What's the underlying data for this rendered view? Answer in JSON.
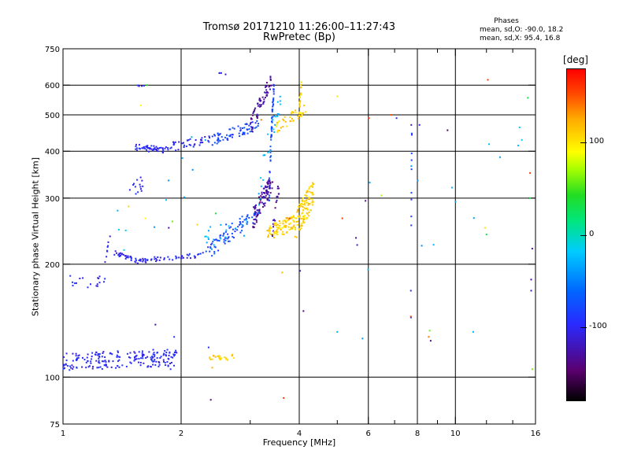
{
  "chart_data": {
    "type": "scatter",
    "title": "Tromsø 20171210 11:26:00–11:27:43",
    "subtitle": "RwPretec (Bp)",
    "xlabel": "Frequency [MHz]",
    "ylabel": "Stationary phase Virtual Height [km]",
    "x_scale": "log",
    "y_scale": "log",
    "xlim": [
      1,
      16
    ],
    "ylim": [
      75,
      750
    ],
    "x_ticks": [
      1,
      2,
      4,
      6,
      8,
      10,
      16
    ],
    "x_ticklabels": [
      "1",
      "2",
      "4",
      "6",
      "8",
      "10",
      "16"
    ],
    "x_minor_ticks": [
      3,
      5,
      7,
      9,
      12,
      14
    ],
    "y_ticks": [
      75,
      100,
      200,
      300,
      400,
      500,
      600,
      750
    ],
    "y_ticklabels": [
      "75",
      "100",
      "200",
      "300",
      "400",
      "500",
      "600",
      "750"
    ],
    "grid_x": [
      2,
      4,
      6,
      8,
      10
    ],
    "grid_y": [
      100,
      200,
      300,
      400,
      500,
      600
    ],
    "phases": {
      "title": "Phases",
      "line1": "mean, sd,O: -90.0, 18.2",
      "line2": "mean, sd,X:  95.4, 16.8"
    },
    "colorbar": {
      "label": "[deg]",
      "range": [
        -180,
        180
      ],
      "ticks": [
        100,
        0,
        -100
      ],
      "ticklabels": [
        "100",
        "0",
        "-100"
      ]
    },
    "series": [
      {
        "phase": -100,
        "segments": [
          {
            "f0": 1.0,
            "f1": 1.28,
            "h0": 180,
            "h1": 180,
            "sc": 8,
            "n": 18
          },
          {
            "f0": 1.28,
            "f1": 1.32,
            "h0": 205,
            "h1": 240,
            "sc": 6,
            "n": 8
          },
          {
            "f0": 1.0,
            "f1": 1.95,
            "h0": 110,
            "h1": 113,
            "sc": 6,
            "n": 200
          },
          {
            "f0": 1.35,
            "f1": 1.55,
            "h0": 215,
            "h1": 204,
            "sc": 3,
            "n": 30
          },
          {
            "f0": 1.55,
            "f1": 2.3,
            "h0": 204,
            "h1": 212,
            "sc": 3,
            "n": 50
          },
          {
            "f0": 1.52,
            "f1": 1.75,
            "h0": 410,
            "h1": 405,
            "sc": 8,
            "n": 40
          },
          {
            "f0": 1.75,
            "f1": 2.4,
            "h0": 405,
            "h1": 430,
            "sc": 12,
            "n": 50
          },
          {
            "f0": 1.48,
            "f1": 1.6,
            "h0": 315,
            "h1": 330,
            "sc": 15,
            "n": 14
          },
          {
            "f0": 1.55,
            "f1": 1.62,
            "h0": 598,
            "h1": 598,
            "sc": 2,
            "n": 5
          },
          {
            "f0": 2.5,
            "f1": 2.65,
            "h0": 645,
            "h1": 640,
            "sc": 3,
            "n": 4
          }
        ]
      },
      {
        "phase": -80,
        "segments": [
          {
            "f0": 2.3,
            "f1": 3.1,
            "h0": 212,
            "h1": 270,
            "sc": 10,
            "n": 70
          },
          {
            "f0": 2.4,
            "f1": 3.15,
            "h0": 430,
            "h1": 470,
            "sc": 15,
            "n": 70
          },
          {
            "f0": 3.35,
            "f1": 3.45,
            "h0": 300,
            "h1": 600,
            "sc": 25,
            "n": 60
          },
          {
            "f0": 2.6,
            "f1": 2.9,
            "h0": 255,
            "h1": 260,
            "sc": 10,
            "n": 6
          },
          {
            "f0": 7.7,
            "f1": 7.75,
            "h0": 105,
            "h1": 500,
            "sc": 10,
            "n": 10
          }
        ]
      },
      {
        "phase": -130,
        "segments": [
          {
            "f0": 3.05,
            "f1": 3.42,
            "h0": 265,
            "h1": 330,
            "sc": 18,
            "n": 90
          },
          {
            "f0": 3.0,
            "f1": 3.4,
            "h0": 460,
            "h1": 620,
            "sc": 25,
            "n": 60
          },
          {
            "f0": 3.4,
            "f1": 3.55,
            "h0": 230,
            "h1": 320,
            "sc": 15,
            "n": 20
          }
        ]
      },
      {
        "phase": 110,
        "segments": [
          {
            "f0": 3.3,
            "f1": 3.9,
            "h0": 240,
            "h1": 260,
            "sc": 12,
            "n": 90
          },
          {
            "f0": 3.9,
            "f1": 4.35,
            "h0": 250,
            "h1": 310,
            "sc": 25,
            "n": 110
          },
          {
            "f0": 3.5,
            "f1": 4.15,
            "h0": 460,
            "h1": 520,
            "sc": 18,
            "n": 40
          },
          {
            "f0": 4.0,
            "f1": 4.06,
            "h0": 520,
            "h1": 630,
            "sc": 20,
            "n": 20
          },
          {
            "f0": 2.35,
            "f1": 2.75,
            "h0": 112,
            "h1": 113,
            "sc": 2,
            "n": 24
          }
        ]
      },
      {
        "phase": -30,
        "segments": [
          {
            "f0": 2.3,
            "f1": 3.0,
            "h0": 230,
            "h1": 260,
            "sc": 20,
            "n": 20
          },
          {
            "f0": 3.1,
            "f1": 3.6,
            "h0": 280,
            "h1": 560,
            "sc": 40,
            "n": 25
          },
          {
            "f0": 1.3,
            "f1": 2.4,
            "h0": 200,
            "h1": 420,
            "sc": 60,
            "n": 12
          },
          {
            "f0": 5.0,
            "f1": 15.0,
            "h0": 130,
            "h1": 420,
            "sc": 80,
            "n": 12
          }
        ]
      }
    ],
    "scattered_points": [
      [
        1.58,
        530,
        90
      ],
      [
        1.64,
        600,
        40
      ],
      [
        1.47,
        285,
        110
      ],
      [
        1.62,
        265,
        90
      ],
      [
        1.72,
        138,
        -130
      ],
      [
        1.86,
        250,
        -130
      ],
      [
        1.9,
        260,
        60
      ],
      [
        1.88,
        105,
        -100
      ],
      [
        1.92,
        128,
        -100
      ],
      [
        2.2,
        255,
        110
      ],
      [
        2.35,
        120,
        -100
      ],
      [
        2.38,
        87,
        -140
      ],
      [
        2.4,
        106,
        120
      ],
      [
        2.45,
        273,
        40
      ],
      [
        3.2,
        485,
        140
      ],
      [
        3.62,
        190,
        120
      ],
      [
        3.65,
        88,
        160
      ],
      [
        3.78,
        265,
        160
      ],
      [
        4.02,
        192,
        -120
      ],
      [
        4.1,
        150,
        -140
      ],
      [
        5.0,
        560,
        100
      ],
      [
        5.0,
        132,
        -30
      ],
      [
        5.15,
        265,
        160
      ],
      [
        5.58,
        235,
        -130
      ],
      [
        5.62,
        225,
        -110
      ],
      [
        5.9,
        295,
        -130
      ],
      [
        6.02,
        490,
        160
      ],
      [
        6.05,
        330,
        -30
      ],
      [
        6.48,
        305,
        70
      ],
      [
        6.85,
        500,
        150
      ],
      [
        7.08,
        490,
        -100
      ],
      [
        7.7,
        145,
        160
      ],
      [
        7.7,
        170,
        -100
      ],
      [
        7.72,
        470,
        -120
      ],
      [
        7.72,
        365,
        -40
      ],
      [
        8.1,
        470,
        -110
      ],
      [
        8.55,
        128,
        140
      ],
      [
        8.6,
        133,
        60
      ],
      [
        8.65,
        125,
        -140
      ],
      [
        9.55,
        455,
        -150
      ],
      [
        9.8,
        320,
        -30
      ],
      [
        11.1,
        132,
        -30
      ],
      [
        11.9,
        250,
        100
      ],
      [
        12.0,
        240,
        30
      ],
      [
        12.1,
        620,
        160
      ],
      [
        15.3,
        555,
        30
      ],
      [
        15.5,
        300,
        30
      ],
      [
        15.5,
        350,
        160
      ],
      [
        15.6,
        182,
        -130
      ],
      [
        15.6,
        170,
        -120
      ],
      [
        15.7,
        220,
        -130
      ],
      [
        15.7,
        105,
        60
      ]
    ]
  }
}
